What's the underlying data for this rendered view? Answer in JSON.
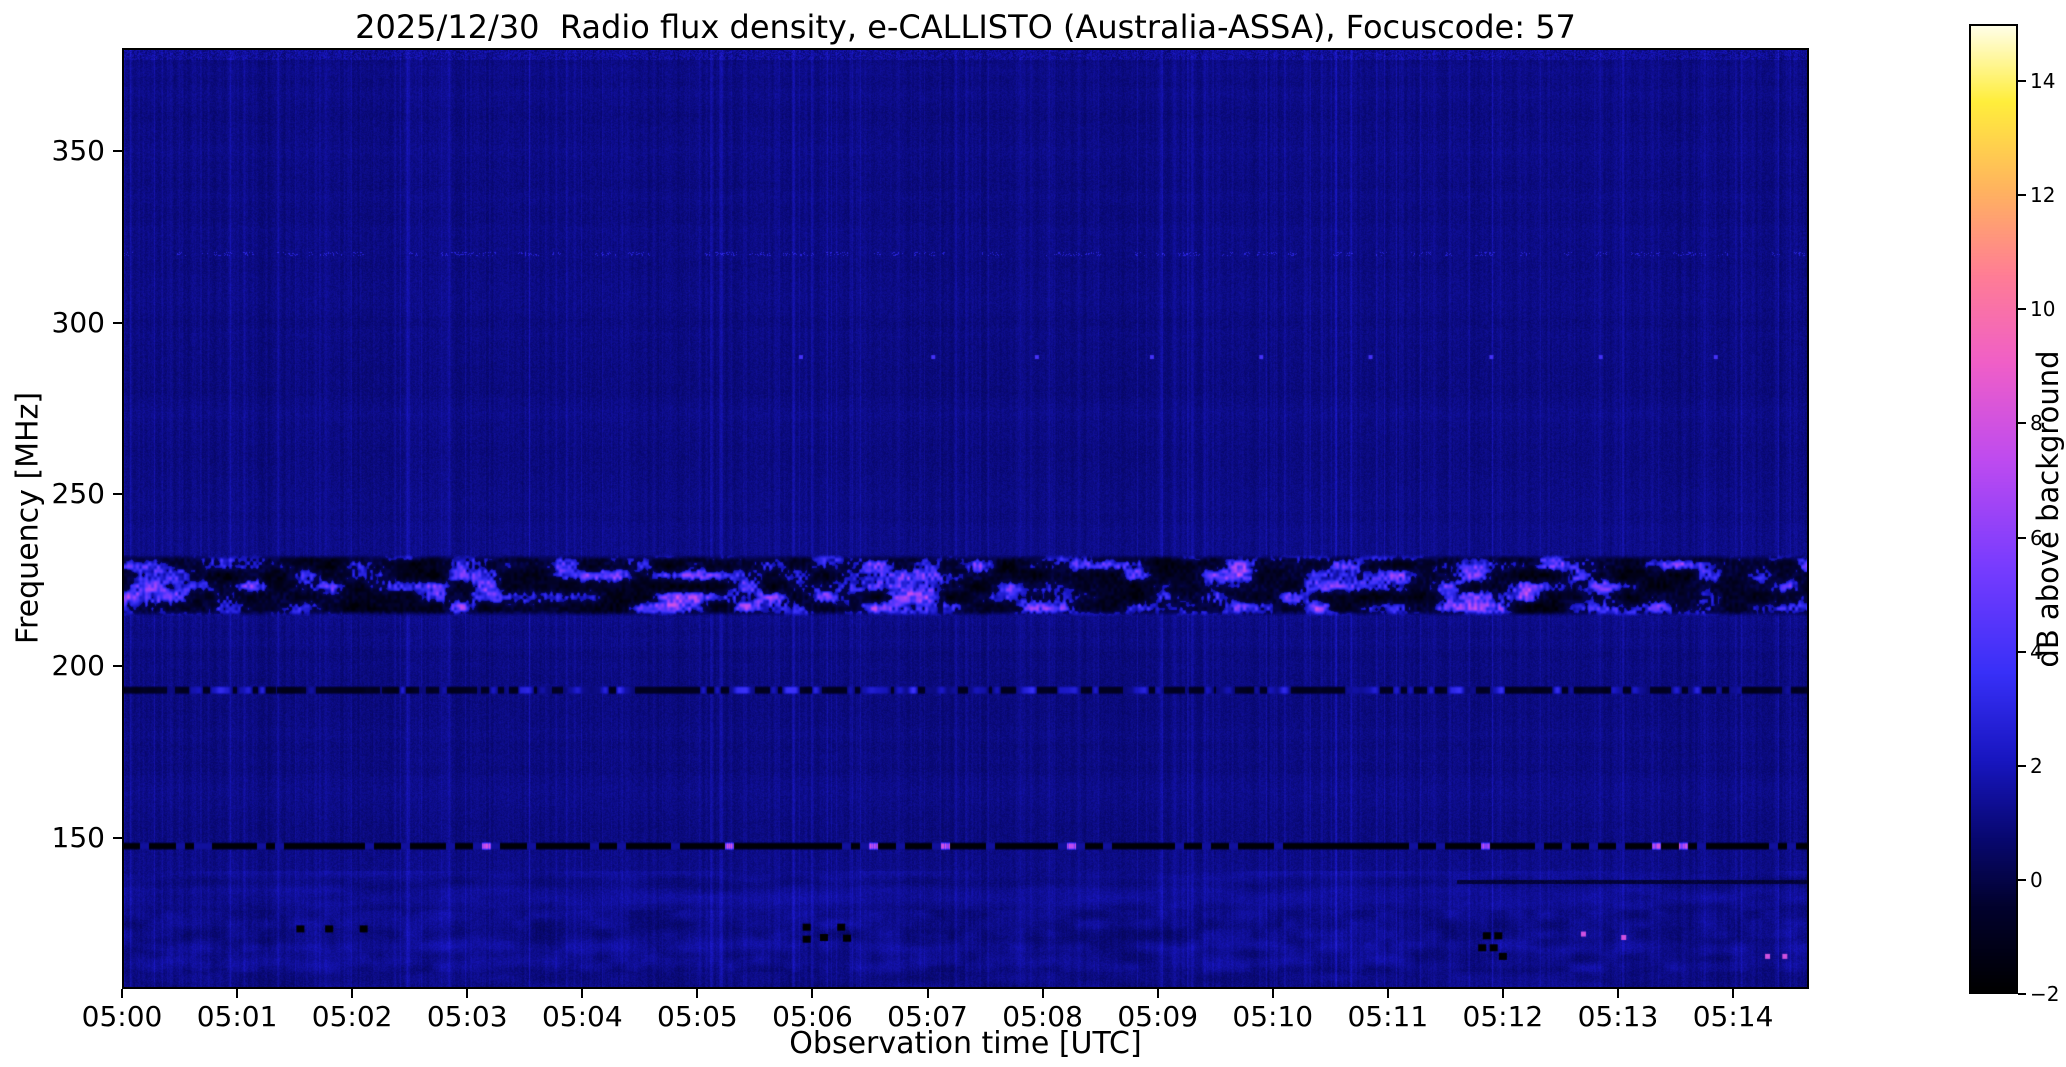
{
  "chart_data": {
    "type": "heatmap",
    "subtype": "radio-spectrogram",
    "title": "2025/12/30  Radio flux density, e-CALLISTO (Australia-ASSA), Focuscode: 57",
    "xlabel": "Observation time [UTC]",
    "ylabel": "Frequency [MHz]",
    "grid": false,
    "x_ticks": [
      "05:00",
      "05:01",
      "05:02",
      "05:03",
      "05:04",
      "05:05",
      "05:06",
      "05:07",
      "05:08",
      "05:09",
      "05:10",
      "05:11",
      "05:12",
      "05:13",
      "05:14"
    ],
    "x_range_minutes": [
      0,
      14.66
    ],
    "y_ticks": [
      350,
      300,
      250,
      200,
      150
    ],
    "y_range_mhz": [
      106,
      380
    ],
    "colorbar": {
      "label": "dB above background",
      "range": [
        -2,
        15
      ],
      "ticks": [
        {
          "value": 14,
          "label": "14"
        },
        {
          "value": 12,
          "label": "12"
        },
        {
          "value": 10,
          "label": "10"
        },
        {
          "value": 8,
          "label": "8"
        },
        {
          "value": 6,
          "label": "6"
        },
        {
          "value": 4,
          "label": "4"
        },
        {
          "value": 2,
          "label": "2"
        },
        {
          "value": 0,
          "label": "0"
        },
        {
          "value": -2,
          "label": "−2"
        }
      ],
      "colormap_stops": [
        [
          0.0,
          0,
          0,
          0
        ],
        [
          0.09,
          2,
          2,
          46
        ],
        [
          0.16,
          8,
          8,
          112
        ],
        [
          0.24,
          24,
          22,
          192
        ],
        [
          0.33,
          56,
          48,
          248
        ],
        [
          0.44,
          120,
          60,
          255
        ],
        [
          0.55,
          190,
          75,
          240
        ],
        [
          0.65,
          240,
          95,
          200
        ],
        [
          0.74,
          255,
          125,
          150
        ],
        [
          0.83,
          255,
          180,
          95
        ],
        [
          0.92,
          255,
          238,
          60
        ],
        [
          1.0,
          255,
          255,
          235
        ]
      ]
    },
    "features": [
      {
        "kind": "noise-floor",
        "db_mean": 1.0,
        "db_spread": 0.7,
        "description": "dark blue background with fine vertical striping noise"
      },
      {
        "kind": "broad-band",
        "f_center": 223.5,
        "f_inner_halfwidth": 7,
        "f_edge_soft": 2.2,
        "db_bright": 5,
        "db_dark": -1.8,
        "description": "patchy RFI band ~215–232 MHz: black dropouts interleaved with bright blue–violet blobs, occasional magenta"
      },
      {
        "kind": "narrow-line",
        "f_center": 193,
        "f_halfwidth": 1.2,
        "db_bright": 2.5,
        "db_dark": -1.3,
        "description": "thin intermittent dashed line at ~193 MHz"
      },
      {
        "kind": "dotted-line",
        "f_center": 147.6,
        "f_halfwidth": 1.1,
        "db_dark": -1.8,
        "db_dot": 7.5,
        "description": "dark carrier line at ~147.5 MHz with sparse magenta dots"
      },
      {
        "kind": "speckle-line",
        "f_center": 320,
        "db": 2.4,
        "description": "faint dotted line of specks at ~320 MHz"
      },
      {
        "kind": "minute-dots",
        "f_center": 290,
        "db": 4,
        "times_min": [
          5.9,
          7.05,
          7.95,
          8.95,
          9.9,
          10.85,
          11.9,
          12.85,
          13.85,
          14.75
        ],
        "description": "small bright dots near 290 MHz roughly once per minute"
      },
      {
        "kind": "bottom-texture",
        "f_max": 140.5,
        "description": "banded mottled region below ~140 MHz"
      },
      {
        "kind": "dark-line-segment",
        "f_center": 137.2,
        "t_start_min": 11.6,
        "db": -0.9,
        "description": "dark horizontal line at ~137 MHz from ~05:11.6 to end"
      },
      {
        "kind": "dark-spots",
        "db": -2,
        "spots_t_f": [
          [
            1.55,
            123.5
          ],
          [
            1.8,
            123.5
          ],
          [
            2.1,
            123.5
          ],
          [
            5.95,
            124
          ],
          [
            6.1,
            121
          ],
          [
            6.25,
            124
          ],
          [
            5.95,
            120.5
          ],
          [
            6.3,
            120.8
          ],
          [
            11.82,
            118
          ],
          [
            11.92,
            118
          ],
          [
            11.86,
            121.5
          ],
          [
            11.96,
            121.5
          ],
          [
            12.0,
            115.5
          ]
        ],
        "description": "small black dropout dashes near 115–125 MHz"
      },
      {
        "kind": "magenta-spots",
        "db": 8,
        "spots_t_f": [
          [
            12.7,
            122
          ],
          [
            13.05,
            121
          ],
          [
            14.3,
            115.5
          ],
          [
            14.45,
            115.5
          ]
        ],
        "description": "isolated magenta specks near 115–125 MHz"
      }
    ]
  }
}
